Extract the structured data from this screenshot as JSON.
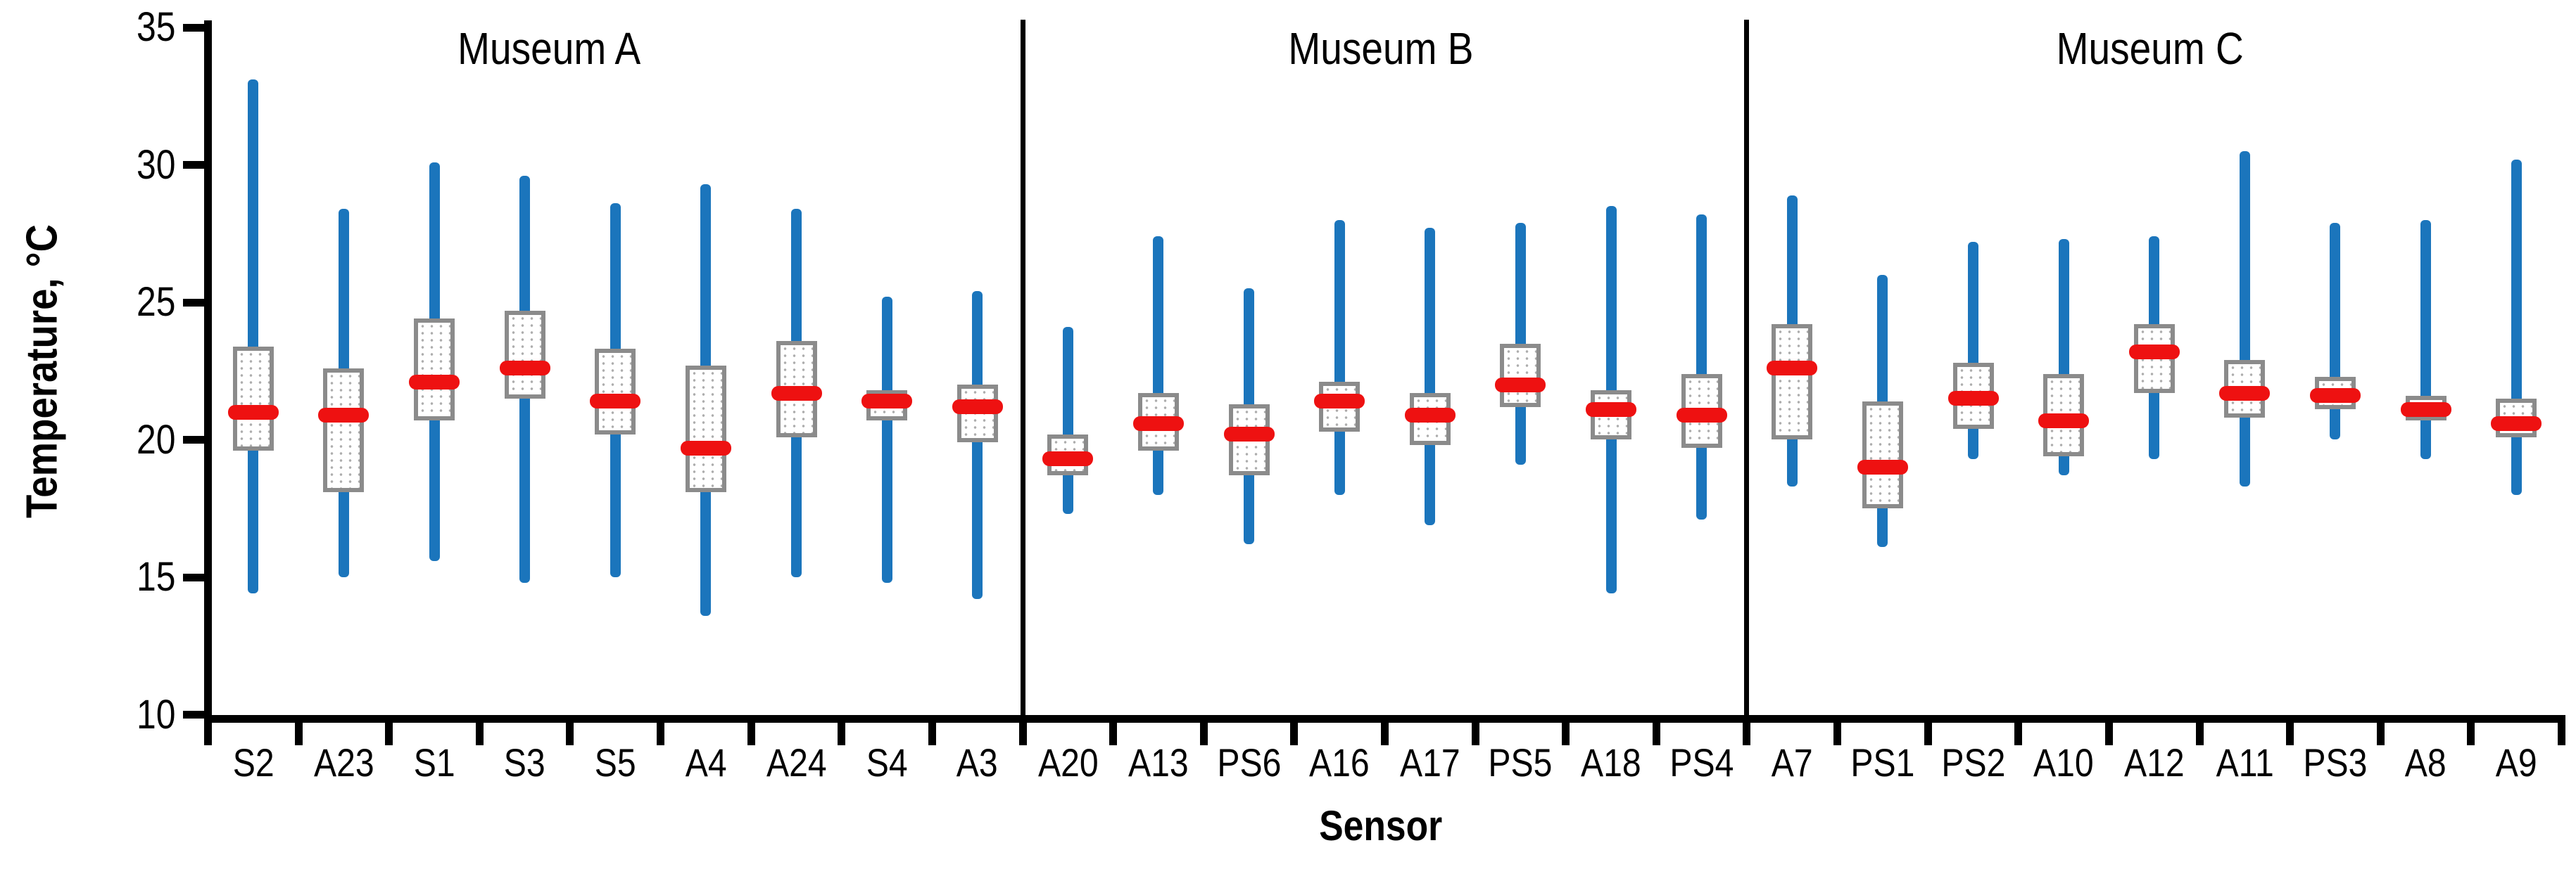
{
  "chart_data": {
    "type": "box-whisker",
    "xlabel": "Sensor",
    "ylabel": "Temperature, °C",
    "ylim": [
      10,
      35
    ],
    "yticks": [
      35,
      30,
      25,
      20,
      15,
      10
    ],
    "grid": false,
    "legend_position": "none",
    "marks": {
      "whisker": "min-max range bar",
      "box": "interquartile box with dotted pattern fill",
      "mean": "red rounded dash"
    },
    "colors": {
      "whisker": "#1B75BC",
      "box_border": "#8B8B8B",
      "box_fill": "#FFFFFF",
      "box_dots": "#ADADAD",
      "mean_marker": "#EE1111",
      "axis": "#000000",
      "background": "#FFFFFF"
    },
    "groups": [
      {
        "name": "Museum A",
        "sensors": [
          {
            "label": "S2",
            "min": 14.4,
            "q1": 19.6,
            "mean": 21.0,
            "q3": 23.4,
            "max": 33.1
          },
          {
            "label": "A23",
            "min": 15.0,
            "q1": 18.1,
            "mean": 20.9,
            "q3": 22.6,
            "max": 28.4
          },
          {
            "label": "S1",
            "min": 15.6,
            "q1": 20.7,
            "mean": 22.1,
            "q3": 24.4,
            "max": 30.1
          },
          {
            "label": "S3",
            "min": 14.8,
            "q1": 21.5,
            "mean": 22.6,
            "q3": 24.7,
            "max": 29.6
          },
          {
            "label": "S5",
            "min": 15.0,
            "q1": 20.2,
            "mean": 21.4,
            "q3": 23.3,
            "max": 28.6
          },
          {
            "label": "A4",
            "min": 13.6,
            "q1": 18.1,
            "mean": 19.7,
            "q3": 22.7,
            "max": 29.3
          },
          {
            "label": "A24",
            "min": 15.0,
            "q1": 20.1,
            "mean": 21.7,
            "q3": 23.6,
            "max": 28.4
          },
          {
            "label": "S4",
            "min": 14.8,
            "q1": 20.7,
            "mean": 21.4,
            "q3": 21.8,
            "max": 25.2
          },
          {
            "label": "A3",
            "min": 14.2,
            "q1": 19.9,
            "mean": 21.2,
            "q3": 22.0,
            "max": 25.4
          }
        ]
      },
      {
        "name": "Museum B",
        "sensors": [
          {
            "label": "A20",
            "min": 17.3,
            "q1": 18.7,
            "mean": 19.3,
            "q3": 20.2,
            "max": 24.1
          },
          {
            "label": "A13",
            "min": 18.0,
            "q1": 19.6,
            "mean": 20.6,
            "q3": 21.7,
            "max": 27.4
          },
          {
            "label": "PS6",
            "min": 16.2,
            "q1": 18.7,
            "mean": 20.2,
            "q3": 21.3,
            "max": 25.5
          },
          {
            "label": "A16",
            "min": 18.0,
            "q1": 20.3,
            "mean": 21.4,
            "q3": 22.1,
            "max": 28.0
          },
          {
            "label": "A17",
            "min": 16.9,
            "q1": 19.8,
            "mean": 20.9,
            "q3": 21.7,
            "max": 27.7
          },
          {
            "label": "PS5",
            "min": 19.1,
            "q1": 21.2,
            "mean": 22.0,
            "q3": 23.5,
            "max": 27.9
          },
          {
            "label": "A18",
            "min": 14.4,
            "q1": 20.0,
            "mean": 21.1,
            "q3": 21.8,
            "max": 28.5
          },
          {
            "label": "PS4",
            "min": 17.1,
            "q1": 19.7,
            "mean": 20.9,
            "q3": 22.4,
            "max": 28.2
          }
        ]
      },
      {
        "name": "Museum C",
        "sensors": [
          {
            "label": "A7",
            "min": 18.3,
            "q1": 20.0,
            "mean": 22.6,
            "q3": 24.2,
            "max": 28.9
          },
          {
            "label": "PS1",
            "min": 16.1,
            "q1": 17.5,
            "mean": 19.0,
            "q3": 21.4,
            "max": 26.0
          },
          {
            "label": "PS2",
            "min": 19.3,
            "q1": 20.4,
            "mean": 21.5,
            "q3": 22.8,
            "max": 27.2
          },
          {
            "label": "A10",
            "min": 18.7,
            "q1": 19.4,
            "mean": 20.7,
            "q3": 22.4,
            "max": 27.3
          },
          {
            "label": "A12",
            "min": 19.3,
            "q1": 21.7,
            "mean": 23.2,
            "q3": 24.2,
            "max": 27.4
          },
          {
            "label": "A11",
            "min": 18.3,
            "q1": 20.8,
            "mean": 21.7,
            "q3": 22.9,
            "max": 30.5
          },
          {
            "label": "PS3",
            "min": 20.0,
            "q1": 21.1,
            "mean": 21.6,
            "q3": 22.3,
            "max": 27.9
          },
          {
            "label": "A8",
            "min": 19.3,
            "q1": 20.7,
            "mean": 21.1,
            "q3": 21.6,
            "max": 28.0
          },
          {
            "label": "A9",
            "min": 18.0,
            "q1": 20.1,
            "mean": 20.6,
            "q3": 21.5,
            "max": 30.2
          }
        ]
      }
    ]
  }
}
